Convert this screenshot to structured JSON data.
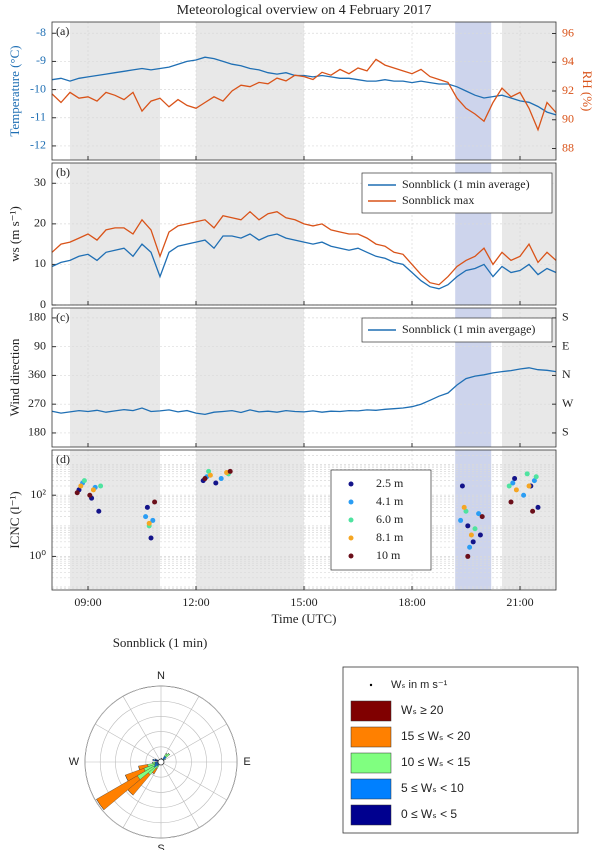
{
  "chart_data": [
    {
      "type": "line",
      "title": "Meteorological  overview on 4 February 2017",
      "panel_label": "(a)",
      "ylabel": "Temperature (°C)",
      "y2label": "RH (%)",
      "grid": true,
      "spans": [
        {
          "start": 8.5,
          "end": 11,
          "color": "#e8e8e8"
        },
        {
          "start": 12,
          "end": 15,
          "color": "#e8e8e8"
        },
        {
          "start": 19.2,
          "end": 20.2,
          "color": "#cdd4ec"
        },
        {
          "start": 20.5,
          "end": 22,
          "color": "#e8e8e8"
        }
      ],
      "xlim": [
        8,
        22
      ],
      "xticks": [
        9,
        12,
        15,
        18,
        21
      ],
      "ylim": [
        -12.5,
        -7.6
      ],
      "yticks": [
        -12,
        -11,
        -10,
        -9,
        -8
      ],
      "y2lim": [
        87.2,
        96.8
      ],
      "y2ticks": [
        88,
        90,
        92,
        94,
        96
      ],
      "x": [
        8,
        8.25,
        8.5,
        8.75,
        9,
        9.25,
        9.5,
        9.75,
        10,
        10.25,
        10.5,
        10.75,
        11,
        11.25,
        11.5,
        11.75,
        12,
        12.25,
        12.5,
        12.75,
        13,
        13.25,
        13.5,
        13.75,
        14,
        14.25,
        14.5,
        14.75,
        15,
        15.25,
        15.5,
        15.75,
        16,
        16.25,
        16.5,
        16.75,
        17,
        17.25,
        17.5,
        17.75,
        18,
        18.25,
        18.5,
        18.75,
        19,
        19.25,
        19.5,
        19.75,
        20,
        20.25,
        20.5,
        20.75,
        21,
        21.25,
        21.5,
        21.75,
        22
      ],
      "series": [
        {
          "color": "#1f6fb4",
          "axis": "y",
          "values": [
            -9.65,
            -9.6,
            -9.7,
            -9.6,
            -9.55,
            -9.5,
            -9.45,
            -9.4,
            -9.35,
            -9.3,
            -9.25,
            -9.3,
            -9.25,
            -9.2,
            -9.1,
            -9.0,
            -8.95,
            -8.85,
            -8.9,
            -9.0,
            -9.1,
            -9.15,
            -9.25,
            -9.3,
            -9.4,
            -9.45,
            -9.4,
            -9.5,
            -9.5,
            -9.55,
            -9.5,
            -9.55,
            -9.6,
            -9.6,
            -9.65,
            -9.7,
            -9.7,
            -9.65,
            -9.7,
            -9.7,
            -9.75,
            -9.7,
            -9.75,
            -9.8,
            -9.8,
            -9.9,
            -10.05,
            -10.2,
            -10.3,
            -10.25,
            -10.2,
            -10.3,
            -10.4,
            -10.45,
            -10.6,
            -10.8,
            -10.9
          ]
        },
        {
          "color": "#d95319",
          "axis": "y2",
          "values": [
            91.8,
            91.2,
            91.9,
            91.5,
            91.6,
            91.3,
            91.9,
            91.7,
            91.4,
            91.9,
            90.6,
            91.3,
            91.5,
            90.9,
            91.4,
            91.0,
            90.8,
            91.2,
            91.6,
            91.3,
            92.0,
            92.4,
            92.3,
            92.6,
            92.5,
            92.9,
            92.7,
            93.1,
            93.0,
            92.8,
            93.3,
            93.1,
            93.5,
            93.2,
            93.6,
            93.4,
            94.2,
            93.8,
            93.6,
            93.4,
            93.2,
            93.5,
            93.0,
            92.8,
            92.6,
            91.5,
            90.8,
            90.4,
            89.9,
            91.2,
            92.2,
            91.6,
            91.9,
            90.8,
            89.3,
            91.2,
            90.5
          ]
        }
      ]
    },
    {
      "type": "line",
      "panel_label": "(b)",
      "ylabel": "ws (m s⁻¹)",
      "grid": true,
      "legend": "upper right",
      "spans": [
        {
          "start": 8.5,
          "end": 11,
          "color": "#e8e8e8"
        },
        {
          "start": 12,
          "end": 15,
          "color": "#e8e8e8"
        },
        {
          "start": 19.2,
          "end": 20.2,
          "color": "#cdd4ec"
        },
        {
          "start": 20.5,
          "end": 22,
          "color": "#e8e8e8"
        }
      ],
      "xlim": [
        8,
        22
      ],
      "xticks": [
        9,
        12,
        15,
        18,
        21
      ],
      "ylim": [
        0,
        35
      ],
      "yticks": [
        0,
        10,
        20,
        30
      ],
      "x": [
        8,
        8.25,
        8.5,
        8.75,
        9,
        9.25,
        9.5,
        9.75,
        10,
        10.25,
        10.5,
        10.75,
        11,
        11.25,
        11.5,
        11.75,
        12,
        12.25,
        12.5,
        12.75,
        13,
        13.25,
        13.5,
        13.75,
        14,
        14.25,
        14.5,
        14.75,
        15,
        15.25,
        15.5,
        15.75,
        16,
        16.25,
        16.5,
        16.75,
        17,
        17.25,
        17.5,
        17.75,
        18,
        18.25,
        18.5,
        18.75,
        19,
        19.25,
        19.5,
        19.75,
        20,
        20.25,
        20.5,
        20.75,
        21,
        21.25,
        21.5,
        21.75,
        22
      ],
      "series": [
        {
          "name": "Sonnblick (1 min average)",
          "color": "#1f6fb4",
          "values": [
            9.5,
            10.5,
            11,
            12,
            12.5,
            11,
            13,
            13.5,
            14,
            12,
            15,
            13,
            7,
            13,
            14.5,
            15,
            15.5,
            16,
            14,
            17,
            17,
            16.5,
            17.5,
            16,
            17,
            17.5,
            16.5,
            16,
            15.5,
            15,
            15.5,
            14.5,
            14,
            13.5,
            14,
            13,
            12,
            11.5,
            10.5,
            10,
            8,
            6,
            4.5,
            4,
            5,
            7,
            8.5,
            9,
            10,
            7,
            9.5,
            8,
            8.5,
            10,
            7.5,
            9,
            8
          ]
        },
        {
          "name": "Sonnblick max",
          "color": "#d95319",
          "values": [
            13,
            15,
            15.5,
            16.5,
            17.5,
            16,
            18.5,
            19,
            19,
            17.5,
            21,
            18.5,
            12,
            18,
            19.5,
            20,
            20.5,
            21,
            19,
            22,
            21.5,
            21,
            23,
            21,
            22.5,
            23,
            21.5,
            21,
            20,
            19.5,
            20,
            18.5,
            18,
            17.5,
            17.5,
            16.5,
            15,
            14.5,
            13,
            12.5,
            10,
            7.5,
            5.5,
            5,
            7,
            9.5,
            11,
            12,
            14,
            10,
            13,
            11,
            12,
            15,
            10.5,
            13,
            11
          ]
        }
      ]
    },
    {
      "type": "line",
      "panel_label": "(c)",
      "ylabel": "Wind direction",
      "grid": true,
      "legend": "upper right",
      "spans": [
        {
          "start": 8.5,
          "end": 11,
          "color": "#e8e8e8"
        },
        {
          "start": 12,
          "end": 15,
          "color": "#e8e8e8"
        },
        {
          "start": 19.2,
          "end": 20.2,
          "color": "#cdd4ec"
        },
        {
          "start": 20.5,
          "end": 22,
          "color": "#e8e8e8"
        }
      ],
      "xlim": [
        8,
        22
      ],
      "xticks": [
        9,
        12,
        15,
        18,
        21
      ],
      "ylim": [
        136,
        571
      ],
      "yticks": [
        180,
        270,
        360,
        {
          "value": 450,
          "label": "90"
        },
        {
          "value": 540,
          "label": "180"
        }
      ],
      "y2lim": [
        136,
        571
      ],
      "y2ticks": [
        {
          "value": 180,
          "label": "S"
        },
        {
          "value": 270,
          "label": "W"
        },
        {
          "value": 360,
          "label": "N"
        },
        {
          "value": 450,
          "label": "E"
        },
        {
          "value": 540,
          "label": "S"
        }
      ],
      "x": [
        8,
        8.25,
        8.5,
        8.75,
        9,
        9.25,
        9.5,
        9.75,
        10,
        10.25,
        10.5,
        10.75,
        11,
        11.25,
        11.5,
        11.75,
        12,
        12.25,
        12.5,
        12.75,
        13,
        13.25,
        13.5,
        13.75,
        14,
        14.25,
        14.5,
        14.75,
        15,
        15.25,
        15.5,
        15.75,
        16,
        16.25,
        16.5,
        16.75,
        17,
        17.25,
        17.5,
        17.75,
        18,
        18.25,
        18.5,
        18.75,
        19,
        19.25,
        19.5,
        19.75,
        20,
        20.25,
        20.5,
        20.75,
        21,
        21.25,
        21.5,
        21.75,
        22
      ],
      "series": [
        {
          "name": "Sonnblick (1 min avergage)",
          "color": "#1f6fb4",
          "values": [
            248,
            242,
            246,
            250,
            247,
            251,
            245,
            249,
            253,
            250,
            258,
            247,
            249,
            252,
            246,
            250,
            242,
            238,
            245,
            247,
            250,
            244,
            252,
            246,
            248,
            245,
            250,
            247,
            246,
            249,
            245,
            248,
            247,
            250,
            249,
            252,
            251,
            254,
            256,
            258,
            262,
            270,
            282,
            295,
            305,
            330,
            350,
            358,
            362,
            368,
            372,
            375,
            380,
            384,
            378,
            376,
            372
          ]
        }
      ]
    },
    {
      "type": "scatter",
      "panel_label": "(d)",
      "ylabel": "ICNC (l⁻¹)",
      "xlabel": "Time (UTC)",
      "grid": true,
      "minor_grid": true,
      "yscale": "log",
      "legend": "center",
      "spans": [
        {
          "start": 8.5,
          "end": 11,
          "color": "#e8e8e8"
        },
        {
          "start": 12,
          "end": 15,
          "color": "#e8e8e8"
        },
        {
          "start": 19.2,
          "end": 20.2,
          "color": "#cdd4ec"
        },
        {
          "start": 20.5,
          "end": 22,
          "color": "#e8e8e8"
        }
      ],
      "xlim": [
        8,
        22
      ],
      "xticks": [
        {
          "value": 9,
          "label": "09:00"
        },
        {
          "value": 12,
          "label": "12:00"
        },
        {
          "value": 15,
          "label": "15:00"
        },
        {
          "value": 18,
          "label": "18:00"
        },
        {
          "value": 21,
          "label": "21:00"
        }
      ],
      "ylim": [
        0.08,
        3000
      ],
      "yticks": [
        {
          "value": 1,
          "label": "10⁰"
        },
        {
          "value": 100,
          "label": "10²"
        }
      ],
      "series": [
        {
          "name": "2.5 m",
          "color": "#14148a",
          "x": [
            8.75,
            9.1,
            9.3,
            10.65,
            10.75,
            12.2,
            12.55,
            19.4,
            19.55,
            19.7,
            19.9,
            20.85,
            21.3,
            21.5
          ],
          "values": [
            150,
            80,
            30,
            40,
            4,
            300,
            250,
            200,
            10,
            3,
            5,
            350,
            200,
            40
          ]
        },
        {
          "name": "4.1 m",
          "color": "#2a9df4",
          "x": [
            8.85,
            9.2,
            10.6,
            10.8,
            12.3,
            12.7,
            19.35,
            19.6,
            19.85,
            20.8,
            21.1,
            21.4
          ],
          "values": [
            250,
            180,
            20,
            15,
            400,
            350,
            15,
            2,
            25,
            250,
            100,
            300
          ]
        },
        {
          "name": "6.0 m",
          "color": "#4fe3a0",
          "x": [
            8.9,
            9.35,
            10.7,
            12.35,
            12.9,
            19.5,
            19.75,
            20.7,
            21.2,
            21.45
          ],
          "values": [
            300,
            200,
            10,
            600,
            500,
            30,
            8,
            200,
            500,
            400
          ]
        },
        {
          "name": "8.1 m",
          "color": "#f5a623",
          "x": [
            8.8,
            9.15,
            10.7,
            12.4,
            12.85,
            19.45,
            19.65,
            20.9,
            21.25
          ],
          "values": [
            200,
            150,
            12,
            450,
            550,
            40,
            5,
            150,
            200
          ]
        },
        {
          "name": "10 m",
          "color": "#6b0f1a",
          "x": [
            8.7,
            9.05,
            10.85,
            12.25,
            12.95,
            19.55,
            19.95,
            20.75,
            21.35
          ],
          "values": [
            120,
            100,
            60,
            350,
            600,
            1,
            20,
            60,
            30
          ]
        }
      ]
    },
    {
      "type": "windrose",
      "title": "Sonnblick (1 min)",
      "compass": [
        "N",
        "E",
        "S",
        "W"
      ],
      "legend_title": "Wₛ in m s⁻¹",
      "directions": [
        5,
        35,
        45,
        55,
        215,
        225,
        235,
        245,
        255,
        265,
        285,
        295
      ],
      "sector_width": 10,
      "rlim": [
        0,
        10
      ],
      "rticks": [
        2,
        4,
        6,
        8,
        10
      ],
      "series": [
        {
          "name": "0 ≤ Wₛ < 5",
          "color": "#00008f",
          "values": [
            0.3,
            0.4,
            0.3,
            0.2,
            0.1,
            0.2,
            0.3,
            0.3,
            0.3,
            0.4,
            0.8,
            0.6
          ]
        },
        {
          "name": "5 ≤ Wₛ < 10",
          "color": "#0080ff",
          "values": [
            0.2,
            0.5,
            0.6,
            0.3,
            0.3,
            0.5,
            0.8,
            0.6,
            0.5,
            0.4,
            0.3,
            0.2
          ]
        },
        {
          "name": "10 ≤ Wₛ < 15",
          "color": "#80ff80",
          "values": [
            0,
            0.4,
            0.6,
            0.2,
            0.6,
            1.5,
            2.5,
            1.5,
            1.0,
            0.3,
            0,
            0
          ]
        },
        {
          "name": "15 ≤ Wₛ < 20",
          "color": "#ff8000",
          "values": [
            0,
            0,
            0,
            0,
            0.8,
            3.5,
            6.2,
            2.6,
            1.2,
            0,
            0,
            0
          ]
        },
        {
          "name": "Wₛ ≥ 20",
          "color": "#800000",
          "values": [
            0,
            0,
            0,
            0,
            0,
            0,
            0,
            0,
            0,
            0,
            0,
            0
          ]
        }
      ]
    }
  ]
}
